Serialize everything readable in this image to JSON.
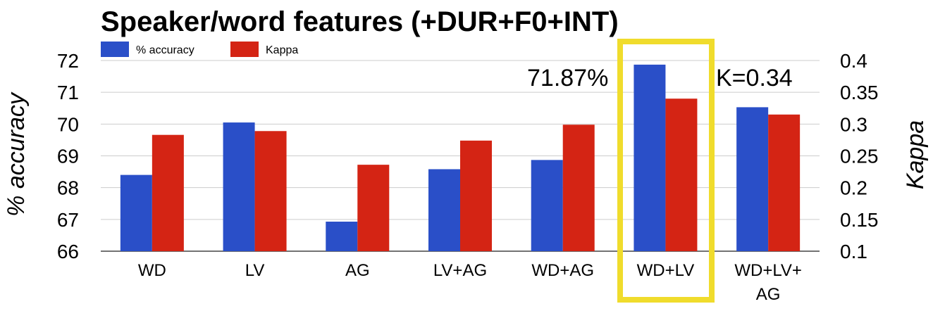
{
  "chart_data": {
    "type": "bar",
    "title": "Speaker/word features (+DUR+F0+INT)",
    "categories": [
      "WD",
      "LV",
      "AG",
      "LV+AG",
      "WD+AG",
      "WD+LV",
      "WD+LV+\nAG"
    ],
    "series": [
      {
        "name": "% accuracy",
        "axis": "left",
        "color": "#2a4fc8",
        "values": [
          68.4,
          70.05,
          66.93,
          68.58,
          68.87,
          71.87,
          70.53
        ]
      },
      {
        "name": "Kappa",
        "axis": "right",
        "color": "#d42414",
        "values": [
          0.283,
          0.289,
          0.236,
          0.274,
          0.299,
          0.34,
          0.315
        ]
      }
    ],
    "ylabel": "% accuracy",
    "ylabel_right": "Kappa",
    "ylim": [
      66,
      72
    ],
    "ylim_right": [
      0.1,
      0.4
    ],
    "yticks": [
      "66",
      "67",
      "68",
      "69",
      "70",
      "71",
      "72"
    ],
    "yticks_right": [
      "0.1",
      "0.15",
      "0.2",
      "0.25",
      "0.3",
      "0.35",
      "0.4"
    ],
    "grid": true,
    "legend_position": "top-left",
    "highlight": {
      "category": "WD+LV",
      "color": "#f0dc2c"
    },
    "annotations": [
      "71.87%",
      "K=0.34"
    ]
  }
}
